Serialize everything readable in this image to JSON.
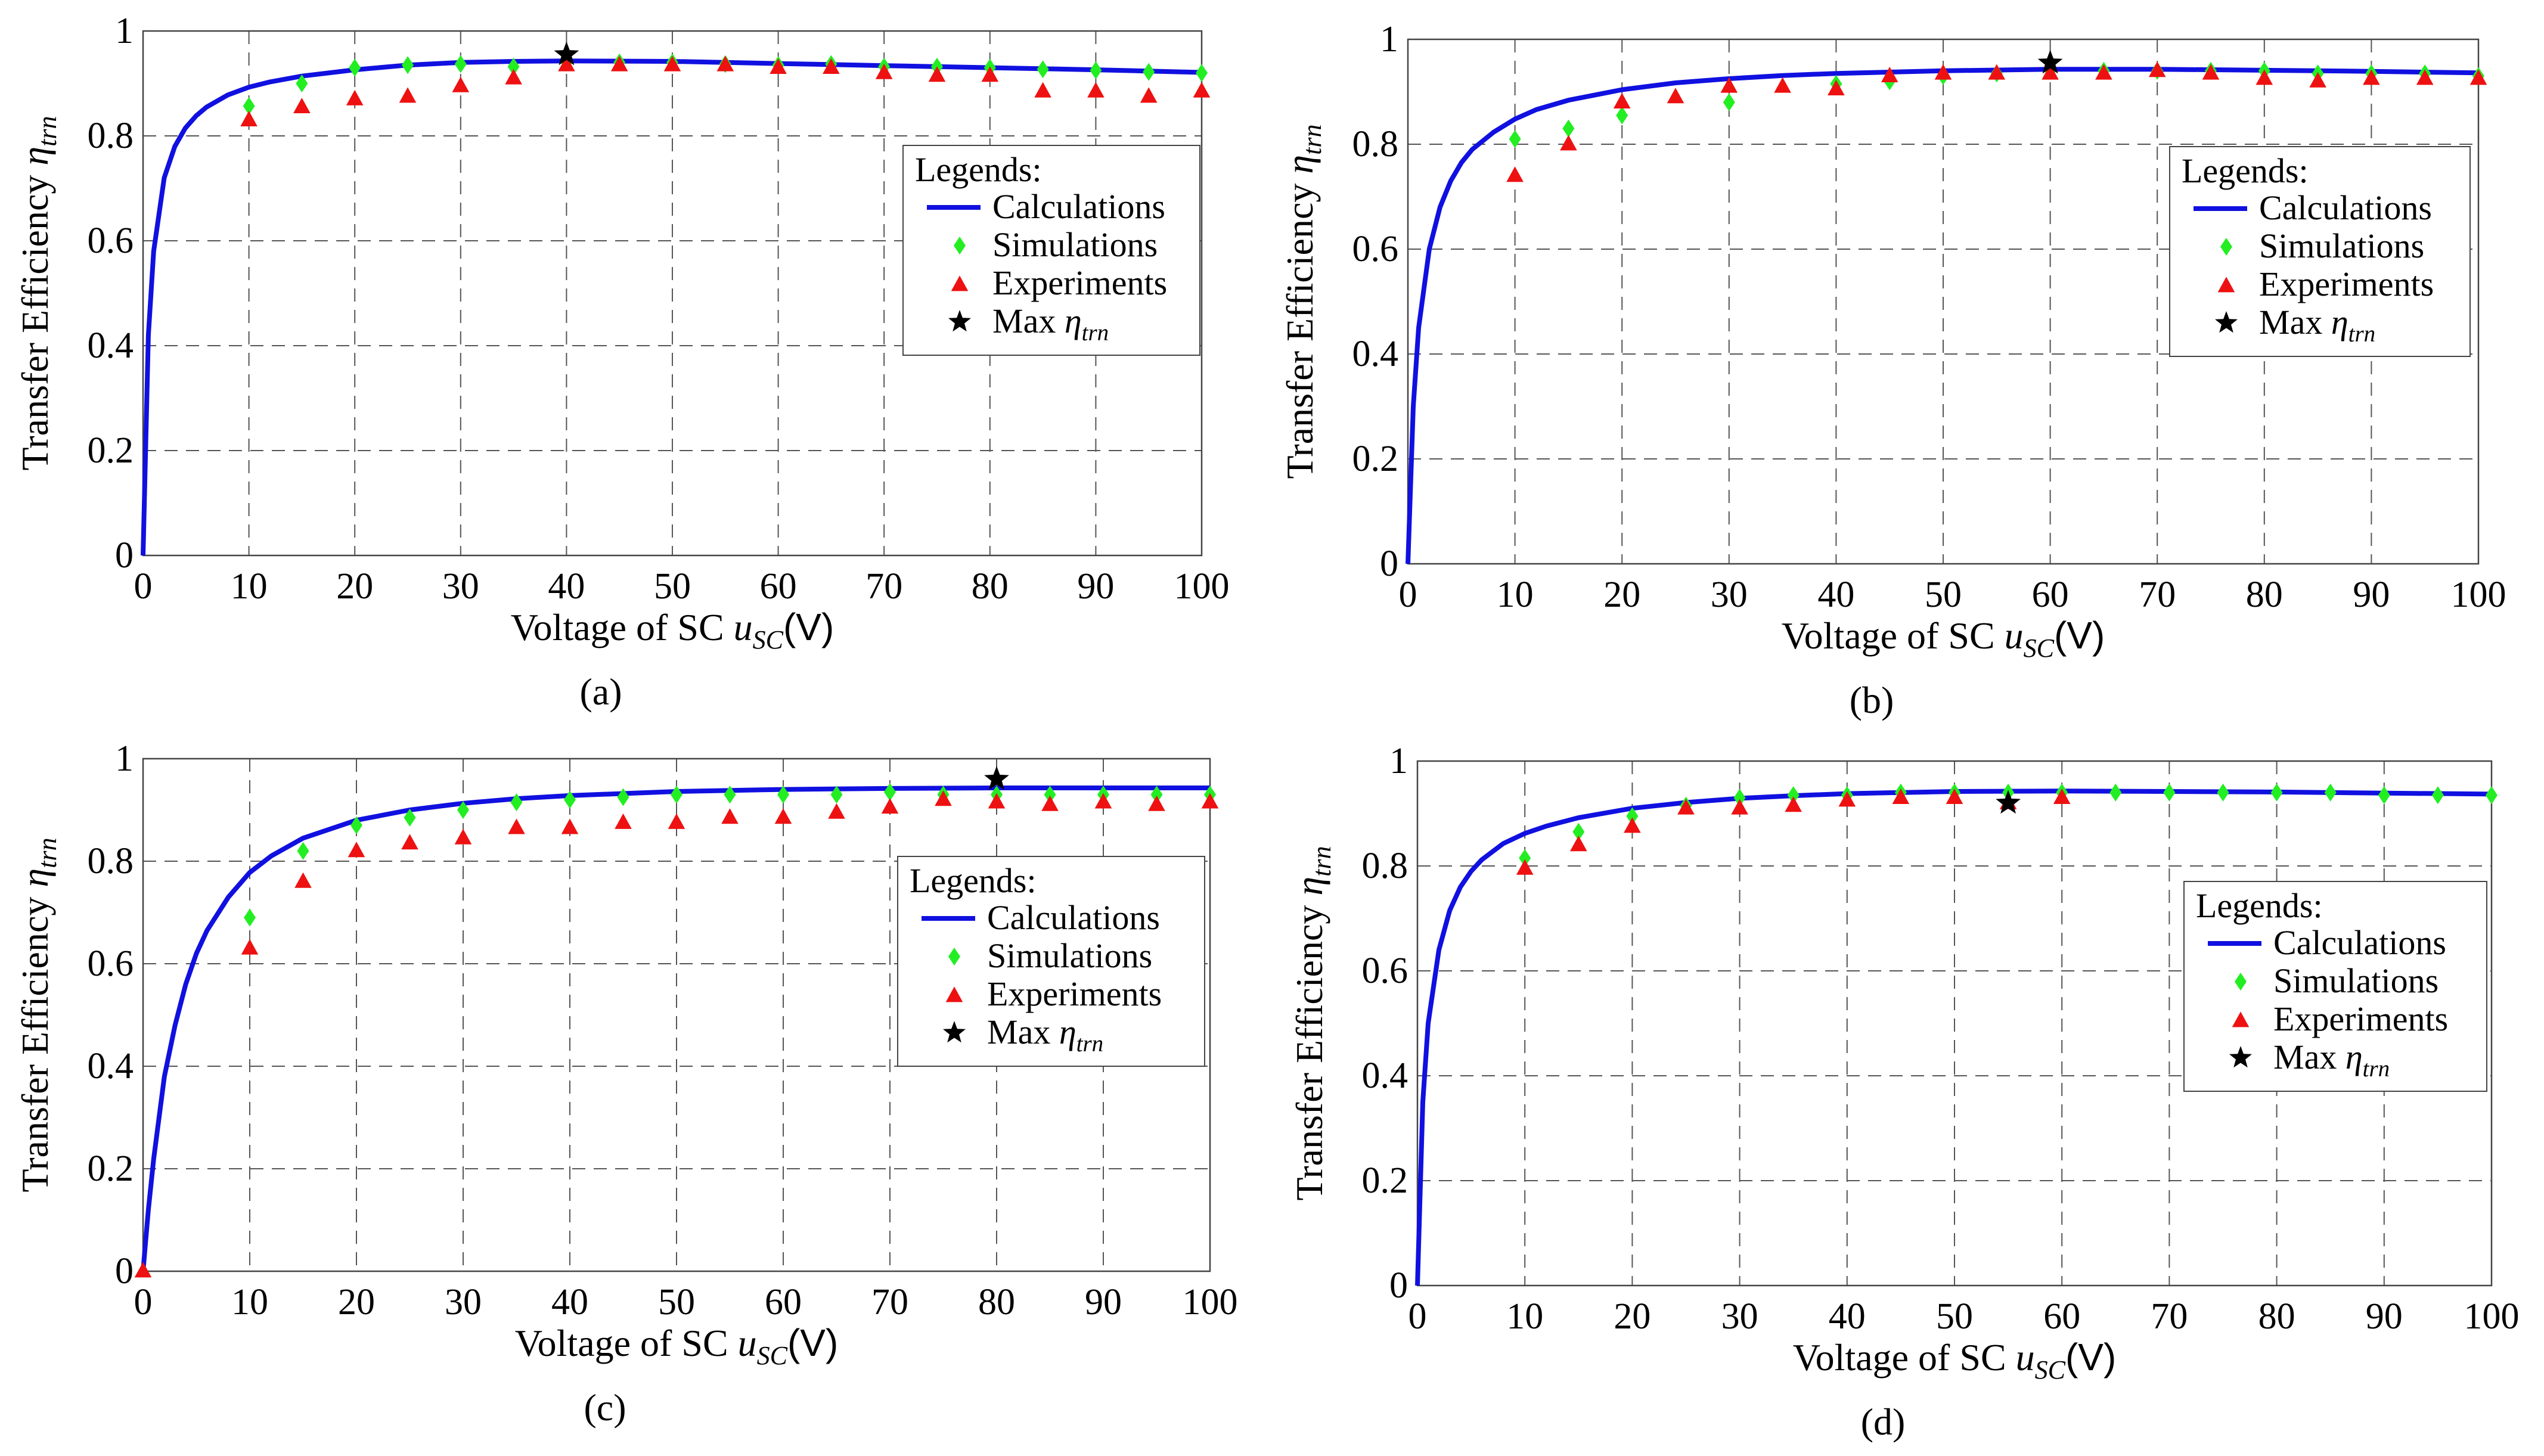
{
  "figure": {
    "ylabel_main": "Transfer Efficiency",
    "ylabel_symbol": "η",
    "ylabel_subscript": "trn",
    "xlabel_main": "Voltage of SC",
    "xlabel_symbol": "u",
    "xlabel_subscript": "SC",
    "xlabel_unit": "(V)",
    "legend_title": "Legends:",
    "legend_calc": "Calculations",
    "legend_sim": "Simulations",
    "legend_exp": "Experiments",
    "legend_max_prefix": "Max",
    "legend_max_symbol": "η",
    "legend_max_subscript": "trn",
    "colors": {
      "calc": "#1010e0",
      "sim": "#22ee22",
      "exp": "#ee1111",
      "max": "#000000",
      "grid": "#555555"
    }
  },
  "chart_data": [
    {
      "type": "line",
      "panel": "a",
      "caption": "(a)",
      "xlim": [
        0,
        100
      ],
      "ylim": [
        0,
        1
      ],
      "xticks": [
        "0",
        "10",
        "20",
        "30",
        "40",
        "50",
        "60",
        "70",
        "80",
        "90",
        "100"
      ],
      "yticks": [
        "0",
        "0.2",
        "0.4",
        "0.6",
        "0.8",
        "1"
      ],
      "calc_curve": [
        [
          0,
          0
        ],
        [
          0.5,
          0.42
        ],
        [
          1,
          0.58
        ],
        [
          2,
          0.72
        ],
        [
          3,
          0.78
        ],
        [
          4,
          0.815
        ],
        [
          5,
          0.838
        ],
        [
          6,
          0.855
        ],
        [
          8,
          0.878
        ],
        [
          10,
          0.893
        ],
        [
          12,
          0.903
        ],
        [
          15,
          0.914
        ],
        [
          20,
          0.926
        ],
        [
          25,
          0.935
        ],
        [
          30,
          0.94
        ],
        [
          35,
          0.942
        ],
        [
          40,
          0.943
        ],
        [
          50,
          0.942
        ],
        [
          60,
          0.938
        ],
        [
          70,
          0.934
        ],
        [
          80,
          0.93
        ],
        [
          90,
          0.926
        ],
        [
          100,
          0.921
        ]
      ],
      "simulations": [
        [
          10,
          0.857
        ],
        [
          15,
          0.9
        ],
        [
          20,
          0.93
        ],
        [
          25,
          0.935
        ],
        [
          30,
          0.937
        ],
        [
          35,
          0.932
        ],
        [
          40,
          0.94
        ],
        [
          45,
          0.94
        ],
        [
          50,
          0.94
        ],
        [
          55,
          0.937
        ],
        [
          60,
          0.935
        ],
        [
          65,
          0.937
        ],
        [
          70,
          0.932
        ],
        [
          75,
          0.932
        ],
        [
          80,
          0.93
        ],
        [
          85,
          0.927
        ],
        [
          90,
          0.925
        ],
        [
          95,
          0.922
        ],
        [
          100,
          0.92
        ]
      ],
      "experiments": [
        [
          10,
          0.83
        ],
        [
          15,
          0.855
        ],
        [
          20,
          0.87
        ],
        [
          25,
          0.875
        ],
        [
          30,
          0.895
        ],
        [
          35,
          0.91
        ],
        [
          40,
          0.935
        ],
        [
          45,
          0.935
        ],
        [
          50,
          0.935
        ],
        [
          55,
          0.935
        ],
        [
          60,
          0.93
        ],
        [
          65,
          0.93
        ],
        [
          70,
          0.92
        ],
        [
          75,
          0.915
        ],
        [
          80,
          0.915
        ],
        [
          85,
          0.885
        ],
        [
          90,
          0.885
        ],
        [
          95,
          0.875
        ],
        [
          100,
          0.885
        ]
      ],
      "max_point": [
        40,
        0.955
      ],
      "legend_position": "right"
    },
    {
      "type": "line",
      "panel": "b",
      "caption": "(b)",
      "xlim": [
        0,
        100
      ],
      "ylim": [
        0,
        1
      ],
      "xticks": [
        "0",
        "10",
        "20",
        "30",
        "40",
        "50",
        "60",
        "70",
        "80",
        "90",
        "100"
      ],
      "yticks": [
        "0",
        "0.2",
        "0.4",
        "0.6",
        "0.8",
        "1"
      ],
      "calc_curve": [
        [
          0,
          0
        ],
        [
          0.5,
          0.3
        ],
        [
          1,
          0.45
        ],
        [
          2,
          0.6
        ],
        [
          3,
          0.68
        ],
        [
          4,
          0.73
        ],
        [
          5,
          0.765
        ],
        [
          6,
          0.79
        ],
        [
          8,
          0.823
        ],
        [
          10,
          0.848
        ],
        [
          12,
          0.866
        ],
        [
          15,
          0.884
        ],
        [
          20,
          0.904
        ],
        [
          25,
          0.917
        ],
        [
          30,
          0.925
        ],
        [
          35,
          0.931
        ],
        [
          40,
          0.935
        ],
        [
          50,
          0.94
        ],
        [
          60,
          0.943
        ],
        [
          70,
          0.943
        ],
        [
          80,
          0.941
        ],
        [
          90,
          0.939
        ],
        [
          100,
          0.936
        ]
      ],
      "simulations": [
        [
          10,
          0.81
        ],
        [
          15,
          0.83
        ],
        [
          20,
          0.855
        ],
        [
          30,
          0.88
        ],
        [
          40,
          0.915
        ],
        [
          45,
          0.92
        ],
        [
          50,
          0.93
        ],
        [
          55,
          0.935
        ],
        [
          60,
          0.94
        ],
        [
          65,
          0.94
        ],
        [
          70,
          0.94
        ],
        [
          75,
          0.94
        ],
        [
          80,
          0.94
        ],
        [
          85,
          0.935
        ],
        [
          90,
          0.935
        ],
        [
          95,
          0.935
        ],
        [
          100,
          0.93
        ]
      ],
      "experiments": [
        [
          10,
          0.74
        ],
        [
          15,
          0.8
        ],
        [
          20,
          0.88
        ],
        [
          25,
          0.89
        ],
        [
          30,
          0.91
        ],
        [
          35,
          0.91
        ],
        [
          40,
          0.905
        ],
        [
          45,
          0.93
        ],
        [
          50,
          0.935
        ],
        [
          55,
          0.935
        ],
        [
          60,
          0.935
        ],
        [
          65,
          0.935
        ],
        [
          70,
          0.94
        ],
        [
          75,
          0.935
        ],
        [
          80,
          0.925
        ],
        [
          85,
          0.92
        ],
        [
          90,
          0.925
        ],
        [
          95,
          0.925
        ],
        [
          100,
          0.925
        ]
      ],
      "max_point": [
        60,
        0.955
      ],
      "legend_position": "right"
    },
    {
      "type": "line",
      "panel": "c",
      "caption": "(c)",
      "xlim": [
        0,
        100
      ],
      "ylim": [
        0,
        1
      ],
      "xticks": [
        "0",
        "10",
        "20",
        "30",
        "40",
        "50",
        "60",
        "70",
        "80",
        "90",
        "100"
      ],
      "yticks": [
        "0",
        "0.2",
        "0.4",
        "0.6",
        "0.8",
        "1"
      ],
      "calc_curve": [
        [
          0,
          0
        ],
        [
          0.5,
          0.12
        ],
        [
          1,
          0.22
        ],
        [
          2,
          0.38
        ],
        [
          3,
          0.48
        ],
        [
          4,
          0.56
        ],
        [
          5,
          0.62
        ],
        [
          6,
          0.665
        ],
        [
          8,
          0.73
        ],
        [
          10,
          0.778
        ],
        [
          12,
          0.81
        ],
        [
          15,
          0.845
        ],
        [
          20,
          0.88
        ],
        [
          25,
          0.9
        ],
        [
          30,
          0.913
        ],
        [
          35,
          0.922
        ],
        [
          40,
          0.928
        ],
        [
          50,
          0.936
        ],
        [
          60,
          0.94
        ],
        [
          70,
          0.942
        ],
        [
          80,
          0.943
        ],
        [
          90,
          0.943
        ],
        [
          100,
          0.943
        ]
      ],
      "simulations": [
        [
          10,
          0.69
        ],
        [
          15,
          0.82
        ],
        [
          20,
          0.87
        ],
        [
          25,
          0.885
        ],
        [
          30,
          0.9
        ],
        [
          35,
          0.915
        ],
        [
          40,
          0.92
        ],
        [
          45,
          0.925
        ],
        [
          50,
          0.93
        ],
        [
          55,
          0.93
        ],
        [
          60,
          0.93
        ],
        [
          65,
          0.93
        ],
        [
          70,
          0.935
        ],
        [
          75,
          0.93
        ],
        [
          80,
          0.93
        ],
        [
          85,
          0.93
        ],
        [
          90,
          0.93
        ],
        [
          95,
          0.93
        ],
        [
          100,
          0.93
        ]
      ],
      "experiments": [
        [
          0,
          0
        ],
        [
          10,
          0.63
        ],
        [
          15,
          0.76
        ],
        [
          20,
          0.82
        ],
        [
          25,
          0.835
        ],
        [
          30,
          0.845
        ],
        [
          35,
          0.865
        ],
        [
          40,
          0.865
        ],
        [
          45,
          0.875
        ],
        [
          50,
          0.875
        ],
        [
          55,
          0.885
        ],
        [
          60,
          0.885
        ],
        [
          65,
          0.895
        ],
        [
          70,
          0.905
        ],
        [
          75,
          0.92
        ],
        [
          80,
          0.915
        ],
        [
          85,
          0.91
        ],
        [
          90,
          0.915
        ],
        [
          95,
          0.91
        ],
        [
          100,
          0.915
        ]
      ],
      "max_point": [
        80,
        0.96
      ],
      "legend_position": "right"
    },
    {
      "type": "line",
      "panel": "d",
      "caption": "(d)",
      "xlim": [
        0,
        100
      ],
      "ylim": [
        0,
        1
      ],
      "xticks": [
        "0",
        "10",
        "20",
        "30",
        "40",
        "50",
        "60",
        "70",
        "80",
        "90",
        "100"
      ],
      "yticks": [
        "0",
        "0.2",
        "0.4",
        "0.6",
        "0.8",
        "1"
      ],
      "calc_curve": [
        [
          0,
          0
        ],
        [
          0.5,
          0.35
        ],
        [
          1,
          0.5
        ],
        [
          2,
          0.64
        ],
        [
          3,
          0.715
        ],
        [
          4,
          0.76
        ],
        [
          5,
          0.79
        ],
        [
          6,
          0.812
        ],
        [
          8,
          0.843
        ],
        [
          10,
          0.862
        ],
        [
          12,
          0.876
        ],
        [
          15,
          0.892
        ],
        [
          20,
          0.91
        ],
        [
          25,
          0.921
        ],
        [
          30,
          0.929
        ],
        [
          35,
          0.934
        ],
        [
          40,
          0.938
        ],
        [
          50,
          0.942
        ],
        [
          60,
          0.943
        ],
        [
          70,
          0.942
        ],
        [
          80,
          0.941
        ],
        [
          90,
          0.939
        ],
        [
          100,
          0.937
        ]
      ],
      "simulations": [
        [
          10,
          0.815
        ],
        [
          15,
          0.865
        ],
        [
          20,
          0.895
        ],
        [
          25,
          0.915
        ],
        [
          30,
          0.93
        ],
        [
          35,
          0.935
        ],
        [
          40,
          0.935
        ],
        [
          45,
          0.94
        ],
        [
          50,
          0.94
        ],
        [
          55,
          0.94
        ],
        [
          60,
          0.94
        ],
        [
          65,
          0.94
        ],
        [
          70,
          0.94
        ],
        [
          75,
          0.94
        ],
        [
          80,
          0.94
        ],
        [
          85,
          0.94
        ],
        [
          90,
          0.935
        ],
        [
          95,
          0.935
        ],
        [
          100,
          0.935
        ]
      ],
      "experiments": [
        [
          10,
          0.795
        ],
        [
          15,
          0.84
        ],
        [
          20,
          0.875
        ],
        [
          25,
          0.91
        ],
        [
          30,
          0.91
        ],
        [
          35,
          0.915
        ],
        [
          40,
          0.925
        ],
        [
          45,
          0.93
        ],
        [
          50,
          0.93
        ],
        [
          55,
          0.92
        ],
        [
          60,
          0.93
        ]
      ],
      "max_point": [
        55,
        0.92
      ],
      "legend_position": "right"
    }
  ]
}
